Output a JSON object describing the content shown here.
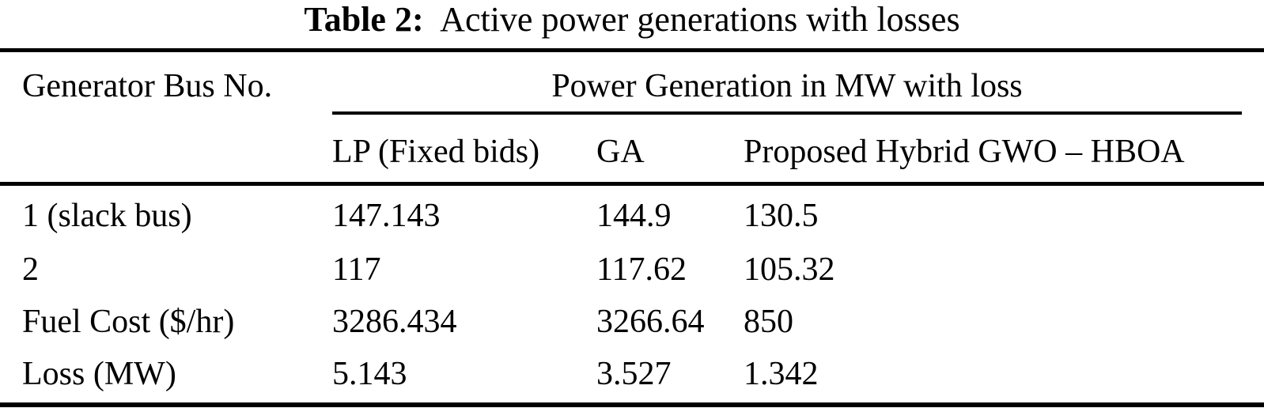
{
  "caption": {
    "label": "Table 2:",
    "text": "Active power generations with losses"
  },
  "table": {
    "col1_header": "Generator Bus No.",
    "group_header": "Power Generation in MW with loss",
    "sub_headers": [
      "LP (Fixed bids)",
      "GA",
      "Proposed Hybrid GWO – HBOA"
    ],
    "rows": [
      {
        "label": "1 (slack bus)",
        "lp": "147.143",
        "ga": "144.9",
        "hybrid": "130.5"
      },
      {
        "label": "2",
        "lp": "117",
        "ga": "117.62",
        "hybrid": "105.32"
      },
      {
        "label": "Fuel Cost ($/hr)",
        "lp": "3286.434",
        "ga": "3266.64",
        "hybrid": "850"
      },
      {
        "label": "Loss (MW)",
        "lp": "5.143",
        "ga": "3.527",
        "hybrid": "1.342"
      }
    ]
  },
  "colors": {
    "text": "#000000",
    "background": "#ffffff",
    "rule": "#000000"
  }
}
